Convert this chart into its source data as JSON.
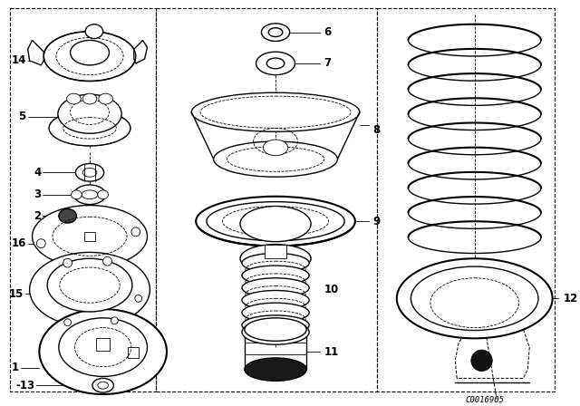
{
  "bg_color": "#ffffff",
  "line_color": "#000000",
  "fig_width": 6.4,
  "fig_height": 4.48,
  "dpi": 100,
  "diagram_code": "C0016905",
  "label_fontsize": 8.5,
  "label_bold": true
}
